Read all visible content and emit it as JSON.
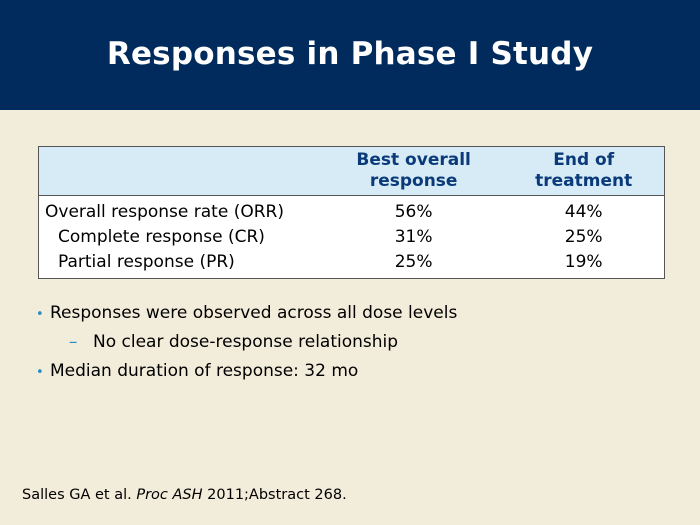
{
  "slide": {
    "title": "Responses in Phase I Study"
  },
  "table": {
    "headers": [
      "",
      "Best overall response",
      "End of treatment"
    ],
    "header_lines": [
      [
        ""
      ],
      [
        "Best overall",
        "response"
      ],
      [
        "End of",
        "treatment"
      ]
    ],
    "rows": [
      {
        "label": "Overall response rate (ORR)",
        "best": "56%",
        "end": "44%"
      },
      {
        "label": "Complete response (CR)",
        "best": "31%",
        "end": "25%"
      },
      {
        "label": "Partial response (PR)",
        "best": "25%",
        "end": "19%"
      }
    ]
  },
  "bullets": [
    {
      "text": "Responses were observed across all dose levels",
      "marker": "•"
    },
    {
      "text": "No clear dose-response relationship",
      "marker": "–"
    },
    {
      "text": "Median duration of response: 32 mo",
      "marker": "•"
    }
  ],
  "citation": {
    "authors": "Salles GA et al.",
    "journal": "Proc ASH",
    "ref": "2011;Abstract 268."
  },
  "colors": {
    "header_bg": "#002b5c",
    "page_bg": "#f2ecda",
    "table_header_bg": "#d6ebf6",
    "table_header_text": "#0a3a7a",
    "bullet_marker": "#2a8fbf"
  }
}
